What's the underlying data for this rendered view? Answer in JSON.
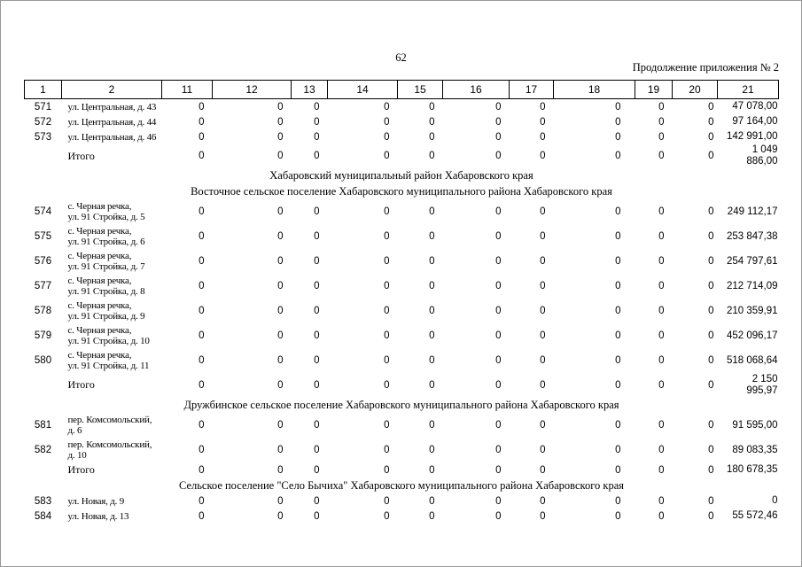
{
  "page": {
    "number": "62",
    "continuation": "Продолжение приложения № 2"
  },
  "table": {
    "columns": [
      "1",
      "2",
      "11",
      "12",
      "13",
      "14",
      "15",
      "16",
      "17",
      "18",
      "19",
      "20",
      "21"
    ],
    "rows": [
      {
        "type": "data",
        "h": "s",
        "num": "571",
        "address": "ул. Центральная, д. 43",
        "values": [
          "0",
          "0",
          "0",
          "0",
          "0",
          "0",
          "0",
          "0",
          "0",
          "0"
        ],
        "total": "47 078,00"
      },
      {
        "type": "data",
        "h": "s",
        "num": "572",
        "address": "ул. Центральная, д. 44",
        "values": [
          "0",
          "0",
          "0",
          "0",
          "0",
          "0",
          "0",
          "0",
          "0",
          "0"
        ],
        "total": "97 164,00"
      },
      {
        "type": "data",
        "h": "s",
        "num": "573",
        "address": "ул. Центральная, д. 46",
        "values": [
          "0",
          "0",
          "0",
          "0",
          "0",
          "0",
          "0",
          "0",
          "0",
          "0"
        ],
        "total": "142 991,00"
      },
      {
        "type": "total",
        "h": "t",
        "label": "Итого",
        "values": [
          "0",
          "0",
          "0",
          "0",
          "0",
          "0",
          "0",
          "0",
          "0",
          "0"
        ],
        "total": "1 049 886,00",
        "total_wrap": true
      },
      {
        "type": "section",
        "text": "Хабаровский муниципальный район Хабаровского края"
      },
      {
        "type": "section",
        "text": "Восточное сельское поселение Хабаровского муниципального района Хабаровского края"
      },
      {
        "type": "data",
        "h": "d",
        "num": "574",
        "address": "с. Черная речка,\nул. 91 Стройка, д. 5",
        "values": [
          "0",
          "0",
          "0",
          "0",
          "0",
          "0",
          "0",
          "0",
          "0",
          "0"
        ],
        "total": "249 112,17"
      },
      {
        "type": "data",
        "h": "d",
        "num": "575",
        "address": "с. Черная речка,\nул. 91 Стройка, д. 6",
        "values": [
          "0",
          "0",
          "0",
          "0",
          "0",
          "0",
          "0",
          "0",
          "0",
          "0"
        ],
        "total": "253 847,38"
      },
      {
        "type": "data",
        "h": "d",
        "num": "576",
        "address": "с. Черная речка,\nул. 91 Стройка, д. 7",
        "values": [
          "0",
          "0",
          "0",
          "0",
          "0",
          "0",
          "0",
          "0",
          "0",
          "0"
        ],
        "total": "254 797,61"
      },
      {
        "type": "data",
        "h": "d",
        "num": "577",
        "address": "с. Черная речка,\nул. 91 Стройка, д. 8",
        "values": [
          "0",
          "0",
          "0",
          "0",
          "0",
          "0",
          "0",
          "0",
          "0",
          "0"
        ],
        "total": "212 714,09"
      },
      {
        "type": "data",
        "h": "d",
        "num": "578",
        "address": "с. Черная речка,\nул. 91 Стройка, д. 9",
        "values": [
          "0",
          "0",
          "0",
          "0",
          "0",
          "0",
          "0",
          "0",
          "0",
          "0"
        ],
        "total": "210 359,91"
      },
      {
        "type": "data",
        "h": "d",
        "num": "579",
        "address": "с. Черная речка,\nул. 91 Стройка, д. 10",
        "values": [
          "0",
          "0",
          "0",
          "0",
          "0",
          "0",
          "0",
          "0",
          "0",
          "0"
        ],
        "total": "452 096,17"
      },
      {
        "type": "data",
        "h": "d",
        "num": "580",
        "address": "с. Черная речка,\nул. 91 Стройка, д. 11",
        "values": [
          "0",
          "0",
          "0",
          "0",
          "0",
          "0",
          "0",
          "0",
          "0",
          "0"
        ],
        "total": "518 068,64"
      },
      {
        "type": "total",
        "h": "w",
        "label": "Итого",
        "values": [
          "0",
          "0",
          "0",
          "0",
          "0",
          "0",
          "0",
          "0",
          "0",
          "0"
        ],
        "total": "2 150 995,97",
        "total_wrap": true
      },
      {
        "type": "section",
        "text": "Дружбинское сельское поселение Хабаровского муниципального района Хабаровского края"
      },
      {
        "type": "data",
        "h": "d",
        "num": "581",
        "address": "пер. Комсомольский,\nд. 6",
        "values": [
          "0",
          "0",
          "0",
          "0",
          "0",
          "0",
          "0",
          "0",
          "0",
          "0"
        ],
        "total": "91 595,00"
      },
      {
        "type": "data",
        "h": "d",
        "num": "582",
        "address": "пер. Комсомольский,\nд. 10",
        "values": [
          "0",
          "0",
          "0",
          "0",
          "0",
          "0",
          "0",
          "0",
          "0",
          "0"
        ],
        "total": "89 083,35"
      },
      {
        "type": "total",
        "h": "s",
        "label": "Итого",
        "values": [
          "0",
          "0",
          "0",
          "0",
          "0",
          "0",
          "0",
          "0",
          "0",
          "0"
        ],
        "total": "180 678,35"
      },
      {
        "type": "section",
        "text": "Сельское поселение \"Село Бычиха\" Хабаровского муниципального района Хабаровского края"
      },
      {
        "type": "data",
        "h": "s",
        "num": "583",
        "address": "ул. Новая, д. 9",
        "values": [
          "0",
          "0",
          "0",
          "0",
          "0",
          "0",
          "0",
          "0",
          "0",
          "0"
        ],
        "total": "0"
      },
      {
        "type": "data",
        "h": "s",
        "num": "584",
        "address": "ул. Новая, д. 13",
        "values": [
          "0",
          "0",
          "0",
          "0",
          "0",
          "0",
          "0",
          "0",
          "0",
          "0"
        ],
        "total": "55 572,46"
      }
    ]
  }
}
